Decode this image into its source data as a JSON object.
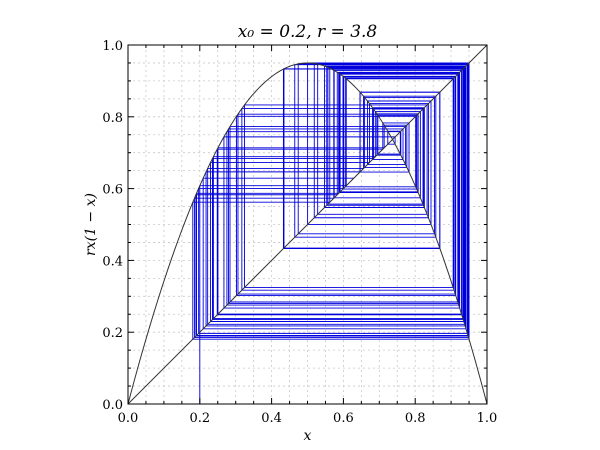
{
  "chart_data": {
    "type": "line",
    "title": "x₀ = 0.2, r = 3.8",
    "xlabel": "x",
    "ylabel": "rx(1 − x)",
    "xlim": [
      0.0,
      1.0
    ],
    "ylim": [
      0.0,
      1.0
    ],
    "x_ticks": [
      "0.0",
      "0.2",
      "0.4",
      "0.6",
      "0.8",
      "1.0"
    ],
    "y_ticks": [
      "0.0",
      "0.2",
      "0.4",
      "0.6",
      "0.8",
      "1.0"
    ],
    "grid": true,
    "r": 3.8,
    "x0": 0.2,
    "iterations": 100,
    "colors": {
      "cobweb": "#0000dd",
      "curve": "#333333",
      "grid": "#c8c8c8"
    }
  }
}
